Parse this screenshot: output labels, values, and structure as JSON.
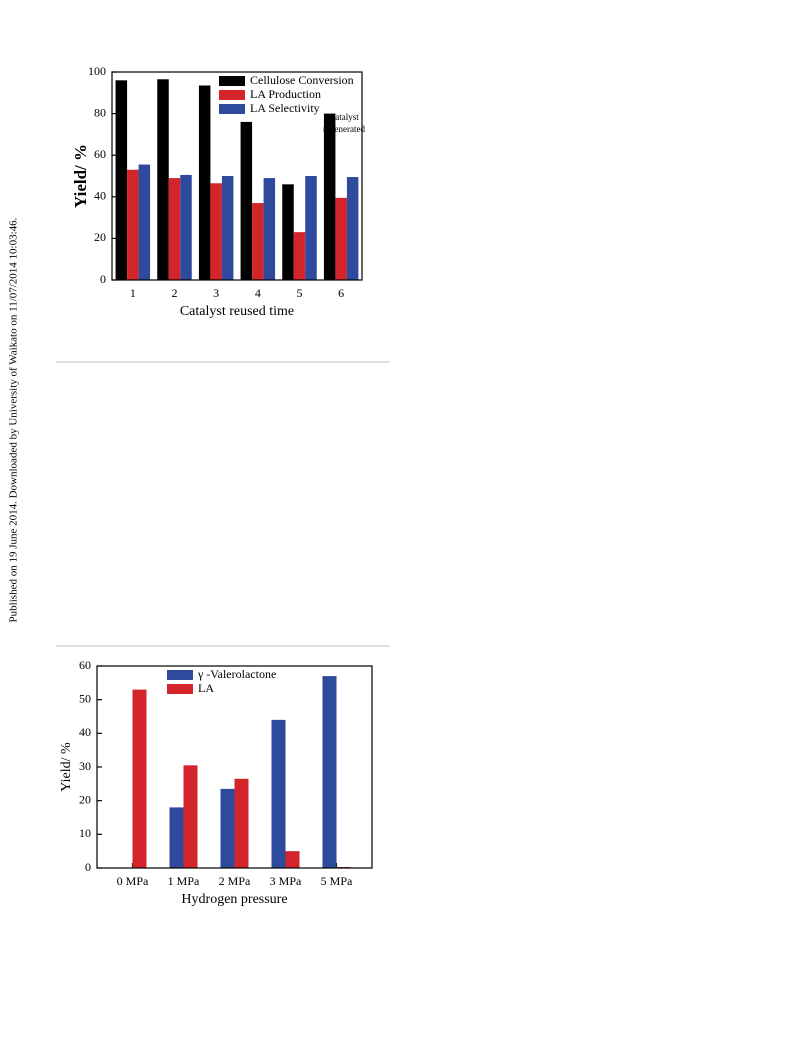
{
  "sidebar": "Published on 19 June 2014. Downloaded by University of Waikato on 11/07/2014 10:03:46.",
  "chart_data": [
    {
      "type": "bar",
      "xlabel": "Catalyst reused time",
      "ylabel": "Yield/ %",
      "categories": [
        "1",
        "2",
        "3",
        "4",
        "5",
        "6"
      ],
      "series": [
        {
          "name": "Cellulose Conversion",
          "color": "#000000",
          "values": [
            96,
            96.5,
            93.5,
            76,
            46,
            80
          ]
        },
        {
          "name": "LA Production",
          "color": "#d4252a",
          "values": [
            53,
            49,
            46.5,
            37,
            23,
            39.5
          ]
        },
        {
          "name": "LA Selectivity",
          "color": "#2e4a9c",
          "values": [
            55.5,
            50.5,
            50,
            49,
            50,
            49.5
          ]
        }
      ],
      "ylim": [
        0,
        100
      ],
      "yticks": [
        0,
        20,
        40,
        60,
        80,
        100
      ],
      "legend": "upper right",
      "annotation": [
        "Catalyst",
        "regenerated"
      ]
    },
    {
      "type": "bar",
      "xlabel": "Hydrogen pressure",
      "ylabel": "Yield/ %",
      "categories": [
        "0 MPa",
        "1 MPa",
        "2 MPa",
        "3 MPa",
        "5 MPa"
      ],
      "series": [
        {
          "name": "γ -Valerolactone",
          "color": "#2e4a9c",
          "values": [
            0,
            18,
            23.5,
            44,
            57
          ]
        },
        {
          "name": "LA",
          "color": "#d4252a",
          "values": [
            53,
            30.5,
            26.5,
            5,
            0.3
          ]
        }
      ],
      "ylim": [
        0,
        60
      ],
      "yticks": [
        0,
        10,
        20,
        30,
        40,
        50,
        60
      ],
      "legend": "upper left"
    }
  ]
}
